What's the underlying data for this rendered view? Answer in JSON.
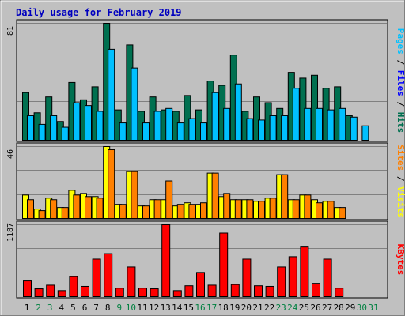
{
  "chart_data": [
    {
      "type": "bar",
      "title": "Daily usage for February 2019",
      "ylabel_parts": [
        "Pages",
        "Files",
        "Hits"
      ],
      "ymax_label": "81",
      "ylim": [
        0,
        81
      ],
      "categories": [
        "1",
        "2",
        "3",
        "4",
        "5",
        "6",
        "7",
        "8",
        "9",
        "10",
        "11",
        "12",
        "13",
        "14",
        "15",
        "16",
        "17",
        "18",
        "19",
        "20",
        "21",
        "22",
        "23",
        "24",
        "25",
        "26",
        "27",
        "28",
        "29",
        "30",
        "31"
      ],
      "weekend_days": [
        "2",
        "3",
        "9",
        "10",
        "16",
        "17",
        "23",
        "24",
        "30",
        "31"
      ],
      "series": [
        {
          "name": "Hits",
          "color": "#007050",
          "values": [
            33,
            19,
            30,
            13,
            40,
            28,
            37,
            81,
            21,
            66,
            20,
            30,
            21,
            20,
            31,
            21,
            41,
            38,
            59,
            20,
            30,
            26,
            22,
            47,
            43,
            45,
            36,
            37,
            17,
            0,
            0
          ]
        },
        {
          "name": "Files",
          "color": "#00c0ff",
          "values": [
            17,
            11,
            17,
            9,
            26,
            24,
            20,
            63,
            12,
            50,
            12,
            20,
            22,
            12,
            15,
            12,
            33,
            22,
            39,
            15,
            14,
            17,
            17,
            36,
            22,
            22,
            21,
            22,
            16,
            10,
            0
          ]
        },
        {
          "name": "Pages",
          "color": "#0000ff",
          "values": [
            0,
            0,
            0,
            0,
            0,
            0,
            0,
            0,
            0,
            0,
            0,
            0,
            0,
            0,
            0,
            0,
            0,
            0,
            0,
            0,
            0,
            0,
            0,
            0,
            0,
            0,
            0,
            0,
            0,
            0,
            0
          ]
        }
      ]
    },
    {
      "type": "bar",
      "ylabel_parts": [
        "Sites",
        "Visits"
      ],
      "ymax_label": "46",
      "ylim": [
        0,
        46
      ],
      "series": [
        {
          "name": "Visits",
          "color": "#ffff00",
          "values": [
            15,
            6,
            13,
            7,
            18,
            16,
            14,
            46,
            9,
            30,
            8,
            12,
            12,
            8,
            10,
            9,
            29,
            14,
            12,
            12,
            11,
            13,
            28,
            12,
            15,
            12,
            11,
            7,
            0,
            0,
            0
          ]
        },
        {
          "name": "Sites",
          "color": "#ff8000",
          "values": [
            12,
            5,
            12,
            7,
            15,
            14,
            13,
            44,
            9,
            30,
            8,
            12,
            24,
            9,
            9,
            10,
            29,
            16,
            12,
            12,
            11,
            13,
            28,
            12,
            15,
            10,
            11,
            7,
            0,
            0,
            0
          ]
        }
      ]
    },
    {
      "type": "bar",
      "ylabel_parts": [
        "KBytes"
      ],
      "ymax_label": "1187",
      "ylim": [
        0,
        1187
      ],
      "series": [
        {
          "name": "KBytes",
          "color": "#ff0000",
          "values": [
            260,
            130,
            190,
            100,
            330,
            170,
            620,
            710,
            140,
            490,
            140,
            130,
            1187,
            100,
            180,
            400,
            190,
            1050,
            200,
            620,
            180,
            170,
            490,
            660,
            820,
            220,
            620,
            140,
            0,
            0,
            0
          ]
        }
      ]
    }
  ]
}
